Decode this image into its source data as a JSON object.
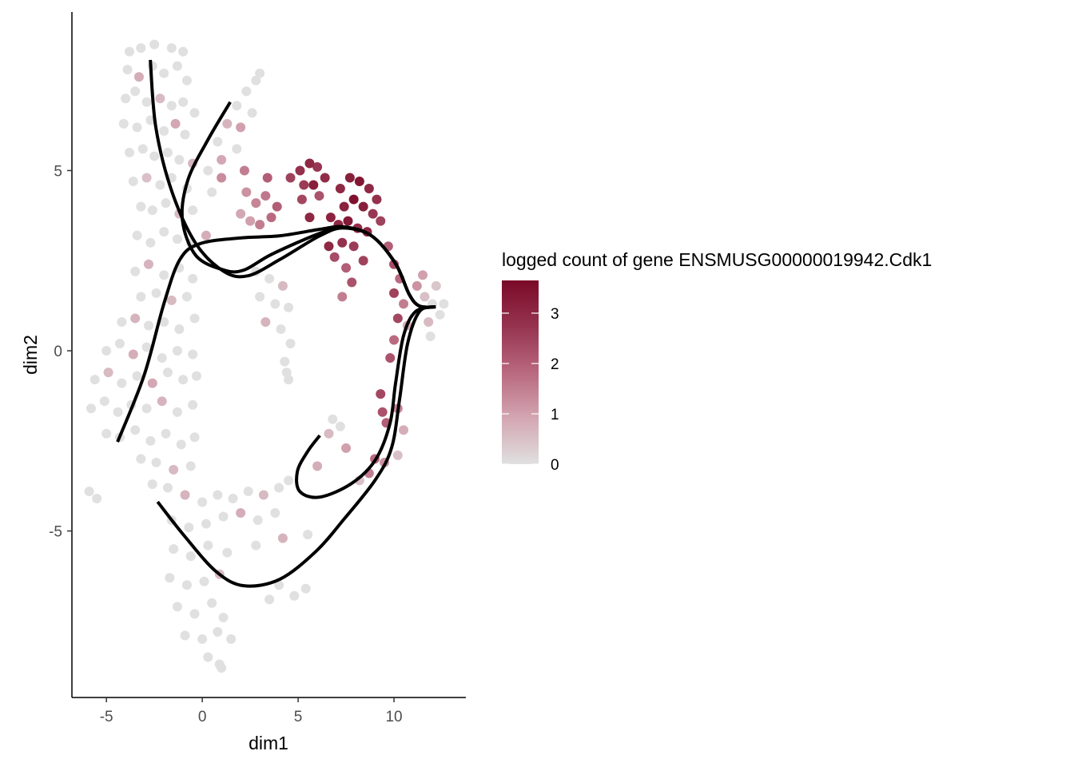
{
  "chart_data": {
    "type": "scatter",
    "title": "",
    "xlabel": "dim1",
    "ylabel": "dim2",
    "xlim": [
      -6.8,
      13.75
    ],
    "ylim": [
      -9.62,
      9.4
    ],
    "x_ticks": [
      -5,
      0,
      5,
      10
    ],
    "y_ticks": [
      -5,
      0,
      5
    ],
    "x_tick_labels": [
      "-5",
      "0",
      "5",
      "10"
    ],
    "y_tick_labels": [
      "-5",
      "0",
      "5"
    ],
    "grid": false,
    "legend": {
      "title": "logged count of gene ENSMUSG00000019942.Cdk1",
      "position": "right",
      "type": "colorbar",
      "range": [
        0,
        3.65
      ],
      "ticks": [
        0,
        1,
        2,
        3
      ],
      "tick_labels": [
        "0",
        "1",
        "2",
        "3"
      ],
      "colors": [
        "#e0e0e0",
        "#d3a6b2",
        "#b9687f",
        "#963450",
        "#7a0a27"
      ]
    },
    "points_format": [
      "dim1",
      "dim2",
      "logged_count"
    ],
    "points": [
      [
        -3.8,
        8.3,
        0
      ],
      [
        -3.2,
        8.4,
        0
      ],
      [
        -2.5,
        8.5,
        0
      ],
      [
        -1.6,
        8.4,
        0
      ],
      [
        -1.0,
        8.3,
        0
      ],
      [
        -3.9,
        7.8,
        0
      ],
      [
        -3.3,
        7.6,
        0.8
      ],
      [
        -2.6,
        7.9,
        0
      ],
      [
        -2.0,
        7.7,
        0
      ],
      [
        -1.3,
        7.9,
        0
      ],
      [
        -0.8,
        7.5,
        0
      ],
      [
        -4.0,
        7.0,
        0
      ],
      [
        -3.5,
        7.2,
        0
      ],
      [
        -2.9,
        6.9,
        0
      ],
      [
        -2.2,
        7.0,
        0.6
      ],
      [
        -1.6,
        6.8,
        0
      ],
      [
        -1.0,
        6.9,
        0
      ],
      [
        -0.4,
        6.6,
        0
      ],
      [
        -4.1,
        6.3,
        0
      ],
      [
        -3.4,
        6.2,
        0
      ],
      [
        -2.7,
        6.4,
        0
      ],
      [
        -2.0,
        6.1,
        0
      ],
      [
        -1.4,
        6.3,
        0.9
      ],
      [
        -0.9,
        6.0,
        0
      ],
      [
        -3.8,
        5.5,
        0
      ],
      [
        -3.1,
        5.6,
        0
      ],
      [
        -2.5,
        5.4,
        0
      ],
      [
        -1.8,
        5.5,
        0
      ],
      [
        -1.2,
        5.3,
        0
      ],
      [
        -0.5,
        5.2,
        0.7
      ],
      [
        -3.6,
        4.7,
        0
      ],
      [
        -2.9,
        4.8,
        0.5
      ],
      [
        -2.2,
        4.6,
        0
      ],
      [
        -1.6,
        4.8,
        0
      ],
      [
        -0.8,
        4.5,
        0
      ],
      [
        -3.2,
        4.0,
        0
      ],
      [
        -2.6,
        3.9,
        0
      ],
      [
        -1.9,
        4.1,
        0
      ],
      [
        -1.2,
        3.8,
        0.6
      ],
      [
        -0.5,
        3.9,
        0
      ],
      [
        -3.4,
        3.2,
        0
      ],
      [
        -2.7,
        3.0,
        0
      ],
      [
        -2.0,
        3.3,
        0
      ],
      [
        -1.3,
        3.1,
        0
      ],
      [
        -0.6,
        3.0,
        0
      ],
      [
        0.2,
        3.2,
        0.8
      ],
      [
        0.5,
        4.4,
        0
      ],
      [
        0.3,
        5.0,
        0
      ],
      [
        0.8,
        5.8,
        0
      ],
      [
        1.3,
        6.3,
        0.7
      ],
      [
        1.8,
        6.8,
        0
      ],
      [
        2.3,
        7.2,
        0
      ],
      [
        2.8,
        7.5,
        0
      ],
      [
        3.0,
        7.7,
        0
      ],
      [
        1.0,
        5.3,
        0.9
      ],
      [
        1.8,
        5.6,
        0
      ],
      [
        2.0,
        6.2,
        1.0
      ],
      [
        2.6,
        6.6,
        0
      ],
      [
        -3.5,
        2.2,
        0
      ],
      [
        -2.8,
        2.4,
        0.7
      ],
      [
        -2.0,
        2.1,
        0
      ],
      [
        -1.2,
        2.3,
        0
      ],
      [
        -0.5,
        2.0,
        0
      ],
      [
        -3.2,
        1.5,
        0
      ],
      [
        -2.4,
        1.6,
        0
      ],
      [
        -1.6,
        1.4,
        0.6
      ],
      [
        -0.8,
        1.5,
        0
      ],
      [
        -4.2,
        0.8,
        0
      ],
      [
        -3.5,
        0.9,
        0.7
      ],
      [
        -2.8,
        0.7,
        0
      ],
      [
        -2.0,
        0.8,
        0
      ],
      [
        -1.2,
        0.6,
        0
      ],
      [
        -0.4,
        0.9,
        0
      ],
      [
        -5.0,
        0.0,
        0
      ],
      [
        -4.3,
        0.2,
        0
      ],
      [
        -3.6,
        -0.1,
        0.8
      ],
      [
        -2.9,
        0.1,
        0
      ],
      [
        -2.1,
        -0.2,
        0
      ],
      [
        -1.3,
        0.0,
        0
      ],
      [
        -0.5,
        -0.1,
        0
      ],
      [
        -5.6,
        -0.8,
        0
      ],
      [
        -4.9,
        -0.6,
        0.6
      ],
      [
        -4.2,
        -0.9,
        0
      ],
      [
        -3.4,
        -0.7,
        0
      ],
      [
        -2.6,
        -0.9,
        0.9
      ],
      [
        -1.8,
        -0.6,
        0
      ],
      [
        -1.0,
        -0.8,
        0
      ],
      [
        -0.3,
        -0.7,
        0
      ],
      [
        -5.8,
        -1.6,
        0
      ],
      [
        -5.1,
        -1.4,
        0
      ],
      [
        -4.4,
        -1.7,
        0
      ],
      [
        -3.7,
        -1.5,
        0
      ],
      [
        -2.9,
        -1.6,
        0
      ],
      [
        -2.1,
        -1.4,
        0.7
      ],
      [
        -1.3,
        -1.7,
        0
      ],
      [
        -0.5,
        -1.5,
        0
      ],
      [
        -5.0,
        -2.3,
        0
      ],
      [
        -4.3,
        -2.4,
        0
      ],
      [
        -3.5,
        -2.2,
        0
      ],
      [
        -2.7,
        -2.5,
        0
      ],
      [
        -1.9,
        -2.3,
        0
      ],
      [
        -1.1,
        -2.6,
        0
      ],
      [
        -0.4,
        -2.4,
        0
      ],
      [
        -3.2,
        -3.0,
        0
      ],
      [
        -2.4,
        -3.1,
        0
      ],
      [
        -1.5,
        -3.3,
        0.6
      ],
      [
        -0.6,
        -3.2,
        0
      ],
      [
        -5.9,
        -3.9,
        0
      ],
      [
        -5.5,
        -4.1,
        0
      ],
      [
        -2.6,
        -3.7,
        0
      ],
      [
        -1.8,
        -3.8,
        0
      ],
      [
        -0.9,
        -4.0,
        0.7
      ],
      [
        0.0,
        -4.2,
        0
      ],
      [
        0.8,
        -4.0,
        0
      ],
      [
        1.6,
        -4.1,
        0
      ],
      [
        2.4,
        -3.9,
        0
      ],
      [
        3.2,
        -4.0,
        0.6
      ],
      [
        4.0,
        -3.8,
        0
      ],
      [
        4.5,
        -3.6,
        0
      ],
      [
        -1.6,
        -4.7,
        0
      ],
      [
        -0.7,
        -4.9,
        0
      ],
      [
        0.2,
        -4.8,
        0
      ],
      [
        1.1,
        -4.6,
        0
      ],
      [
        2.0,
        -4.5,
        0.8
      ],
      [
        2.9,
        -4.7,
        0
      ],
      [
        3.8,
        -4.5,
        0
      ],
      [
        -1.5,
        -5.5,
        0
      ],
      [
        -0.6,
        -5.7,
        0
      ],
      [
        0.3,
        -5.4,
        0
      ],
      [
        1.3,
        -5.6,
        0
      ],
      [
        2.8,
        -5.4,
        0
      ],
      [
        4.2,
        -5.2,
        0.7
      ],
      [
        5.5,
        -5.1,
        0
      ],
      [
        -1.7,
        -6.3,
        0
      ],
      [
        -0.8,
        -6.5,
        0
      ],
      [
        0.1,
        -6.4,
        0
      ],
      [
        0.9,
        -6.2,
        0.6
      ],
      [
        4.0,
        -6.5,
        0
      ],
      [
        4.8,
        -6.8,
        0
      ],
      [
        5.4,
        -6.6,
        0
      ],
      [
        3.5,
        -6.9,
        0
      ],
      [
        -1.3,
        -7.1,
        0
      ],
      [
        -0.4,
        -7.3,
        0
      ],
      [
        0.5,
        -7.0,
        0
      ],
      [
        1.1,
        -7.4,
        0
      ],
      [
        -0.9,
        -7.9,
        0
      ],
      [
        0.0,
        -8.0,
        0
      ],
      [
        0.8,
        -7.8,
        0
      ],
      [
        1.5,
        -8.0,
        0
      ],
      [
        0.3,
        -8.5,
        0
      ],
      [
        0.9,
        -8.7,
        0
      ],
      [
        1.0,
        -8.8,
        0
      ],
      [
        2.8,
        2.2,
        0
      ],
      [
        3.5,
        2.0,
        0
      ],
      [
        4.2,
        1.8,
        0.6
      ],
      [
        3.0,
        1.5,
        0
      ],
      [
        3.8,
        1.3,
        0
      ],
      [
        4.5,
        1.2,
        0
      ],
      [
        3.3,
        0.8,
        0.7
      ],
      [
        4.1,
        0.6,
        0
      ],
      [
        4.6,
        0.2,
        0
      ],
      [
        4.3,
        -0.3,
        0
      ],
      [
        4.5,
        -0.8,
        0
      ],
      [
        4.4,
        -0.6,
        0
      ],
      [
        2.3,
        4.4,
        1.2
      ],
      [
        2.8,
        4.1,
        1.4
      ],
      [
        3.3,
        4.3,
        1.6
      ],
      [
        3.9,
        4.0,
        2.0
      ],
      [
        2.5,
        3.6,
        1.0
      ],
      [
        3.0,
        3.5,
        1.5
      ],
      [
        3.6,
        3.7,
        1.8
      ],
      [
        2.0,
        3.8,
        0.9
      ],
      [
        3.4,
        4.8,
        2.0
      ],
      [
        2.2,
        5.0,
        1.5
      ],
      [
        1.0,
        4.8,
        1.3
      ],
      [
        4.6,
        4.8,
        2.5
      ],
      [
        5.1,
        5.0,
        2.8
      ],
      [
        5.6,
        5.2,
        3.0
      ],
      [
        6.0,
        5.1,
        2.7
      ],
      [
        6.4,
        4.8,
        2.9
      ],
      [
        5.3,
        4.6,
        2.6
      ],
      [
        5.8,
        4.6,
        3.2
      ],
      [
        5.2,
        4.2,
        2.4
      ],
      [
        5.6,
        3.7,
        3.0
      ],
      [
        6.1,
        4.3,
        2.2
      ],
      [
        7.2,
        4.5,
        3.0
      ],
      [
        7.7,
        4.8,
        3.2
      ],
      [
        8.2,
        4.7,
        3.4
      ],
      [
        8.7,
        4.5,
        3.0
      ],
      [
        9.1,
        4.2,
        2.8
      ],
      [
        7.4,
        4.0,
        3.1
      ],
      [
        7.9,
        4.2,
        3.5
      ],
      [
        8.4,
        4.0,
        3.2
      ],
      [
        8.9,
        3.8,
        2.7
      ],
      [
        7.1,
        3.5,
        3.0
      ],
      [
        7.6,
        3.6,
        3.3
      ],
      [
        8.1,
        3.4,
        2.9
      ],
      [
        8.6,
        3.3,
        3.0
      ],
      [
        9.3,
        3.6,
        2.5
      ],
      [
        6.7,
        3.7,
        3.1
      ],
      [
        7.3,
        3.0,
        2.8
      ],
      [
        7.9,
        2.9,
        2.6
      ],
      [
        8.4,
        2.5,
        2.5
      ],
      [
        6.9,
        2.6,
        2.3
      ],
      [
        7.5,
        2.3,
        2.0
      ],
      [
        7.8,
        1.9,
        2.2
      ],
      [
        7.3,
        1.5,
        1.5
      ],
      [
        6.6,
        2.9,
        3.0
      ],
      [
        9.7,
        2.9,
        2.0
      ],
      [
        10.0,
        2.4,
        2.3
      ],
      [
        10.3,
        2.0,
        1.8
      ],
      [
        10.0,
        1.6,
        2.5
      ],
      [
        10.5,
        1.3,
        1.5
      ],
      [
        10.2,
        0.9,
        2.4
      ],
      [
        10.0,
        0.3,
        1.8
      ],
      [
        9.8,
        -0.2,
        2.2
      ],
      [
        10.7,
        0.7,
        0.8
      ],
      [
        11.2,
        1.8,
        1.2
      ],
      [
        11.6,
        1.5,
        0.5
      ],
      [
        12.0,
        1.3,
        0
      ],
      [
        12.4,
        1.0,
        0
      ],
      [
        11.8,
        0.8,
        0.6
      ],
      [
        12.2,
        1.8,
        0.4
      ],
      [
        11.5,
        2.1,
        1.0
      ],
      [
        11.9,
        0.4,
        0
      ],
      [
        12.6,
        1.3,
        0
      ],
      [
        9.3,
        -1.2,
        2.4
      ],
      [
        9.4,
        -1.7,
        2.2
      ],
      [
        9.6,
        -2.0,
        2.0
      ],
      [
        10.2,
        -1.6,
        1.4
      ],
      [
        10.5,
        -2.2,
        0.8
      ],
      [
        10.2,
        -2.9,
        0.5
      ],
      [
        9.5,
        -3.1,
        1.2
      ],
      [
        9.0,
        -3.0,
        1.8
      ],
      [
        8.7,
        -3.4,
        1.5
      ],
      [
        8.2,
        -3.6,
        0.5
      ],
      [
        6.8,
        -1.9,
        0
      ],
      [
        7.2,
        -2.1,
        0
      ],
      [
        6.6,
        -2.3,
        0.6
      ],
      [
        7.5,
        -2.7,
        1.0
      ],
      [
        6.0,
        -3.2,
        0.8
      ]
    ],
    "curves": [
      [
        [
          -2.71,
          8.07
        ],
        [
          -2.42,
          6.19
        ],
        [
          -1.58,
          4.41
        ],
        [
          -0.33,
          2.97
        ],
        [
          1.13,
          2.2
        ],
        [
          2.38,
          2.08
        ],
        [
          4.04,
          2.53
        ],
        [
          6.13,
          3.19
        ],
        [
          7.38,
          3.41
        ],
        [
          8.83,
          3.19
        ],
        [
          10.08,
          2.42
        ],
        [
          10.79,
          1.57
        ],
        [
          11.33,
          1.24
        ],
        [
          12.17,
          1.22
        ]
      ],
      [
        [
          1.46,
          6.9
        ],
        [
          0.29,
          5.85
        ],
        [
          -0.75,
          4.74
        ],
        [
          -1.04,
          3.64
        ],
        [
          -0.33,
          2.64
        ],
        [
          1.13,
          2.24
        ],
        [
          2.17,
          2.24
        ],
        [
          3.63,
          2.68
        ],
        [
          6.13,
          3.26
        ],
        [
          7.38,
          3.41
        ],
        [
          8.83,
          3.19
        ],
        [
          10.08,
          2.42
        ],
        [
          10.79,
          1.57
        ],
        [
          11.33,
          1.24
        ],
        [
          12.17,
          1.22
        ]
      ],
      [
        [
          -4.42,
          -2.53
        ],
        [
          -3.04,
          -0.69
        ],
        [
          -2.0,
          1.31
        ],
        [
          -1.17,
          2.53
        ],
        [
          -0.13,
          2.97
        ],
        [
          1.96,
          3.13
        ],
        [
          4.04,
          3.19
        ],
        [
          6.13,
          3.37
        ],
        [
          7.38,
          3.44
        ],
        [
          8.83,
          3.19
        ],
        [
          10.08,
          2.42
        ],
        [
          10.79,
          1.57
        ],
        [
          11.33,
          1.24
        ],
        [
          12.17,
          1.22
        ]
      ],
      [
        [
          12.17,
          1.22
        ],
        [
          11.13,
          1.09
        ],
        [
          10.5,
          0.42
        ],
        [
          10.08,
          -0.91
        ],
        [
          9.79,
          -2.02
        ],
        [
          9.04,
          -3.02
        ],
        [
          7.79,
          -3.68
        ],
        [
          6.13,
          -4.06
        ],
        [
          5.08,
          -3.9
        ],
        [
          4.96,
          -3.35
        ],
        [
          5.5,
          -2.79
        ],
        [
          6.13,
          -2.35
        ]
      ],
      [
        [
          -2.33,
          -4.19
        ],
        [
          -0.96,
          -5.12
        ],
        [
          0.71,
          -6.12
        ],
        [
          2.17,
          -6.52
        ],
        [
          4.04,
          -6.34
        ],
        [
          5.92,
          -5.57
        ],
        [
          7.38,
          -4.68
        ],
        [
          9.04,
          -3.57
        ],
        [
          9.88,
          -2.68
        ],
        [
          10.29,
          -1.35
        ],
        [
          10.71,
          0.2
        ],
        [
          11.33,
          1.09
        ],
        [
          12.17,
          1.22
        ]
      ]
    ]
  }
}
